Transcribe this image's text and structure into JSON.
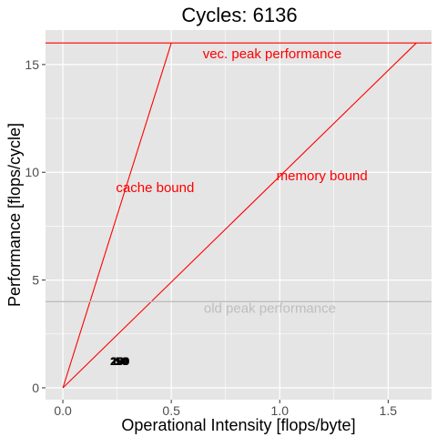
{
  "chart_data": {
    "type": "line",
    "title": "Cycles:  6136",
    "xlabel": "Operational Intensity [flops/byte]",
    "ylabel": "Performance [flops/cycle]",
    "xlim": [
      -0.08,
      1.7
    ],
    "ylim": [
      -0.55,
      16.6
    ],
    "grid": true,
    "x_ticks": [
      {
        "value": 0.0,
        "label": "0.0"
      },
      {
        "value": 0.5,
        "label": "0.5"
      },
      {
        "value": 1.0,
        "label": "1.0"
      },
      {
        "value": 1.5,
        "label": "1.5"
      }
    ],
    "y_ticks": [
      {
        "value": 0,
        "label": "0"
      },
      {
        "value": 5,
        "label": "5"
      },
      {
        "value": 10,
        "label": "10"
      },
      {
        "value": 15,
        "label": "15"
      }
    ],
    "x_minor": [
      0.25,
      0.75,
      1.25
    ],
    "y_minor": [
      2.5,
      7.5,
      12.5
    ],
    "colors": {
      "panel": "#e5e5e5",
      "grid": "#ffffff",
      "roof": "#ff0000",
      "old_peak": "#bebebe",
      "points": "#000000"
    },
    "series": [
      {
        "name": "vec. peak performance",
        "x": [
          -0.08,
          1.7
        ],
        "y": [
          16,
          16
        ],
        "color": "#ff0000"
      },
      {
        "name": "cache bound",
        "x": [
          0,
          0.5
        ],
        "y": [
          0,
          16
        ],
        "color": "#ff0000"
      },
      {
        "name": "memory bound",
        "x": [
          0,
          1.63
        ],
        "y": [
          0,
          16
        ],
        "color": "#ff0000"
      },
      {
        "name": "old peak performance",
        "x": [
          -0.08,
          1.7
        ],
        "y": [
          4,
          4
        ],
        "color": "#bebebe"
      }
    ],
    "annotations": [
      {
        "text": "vec. peak performance",
        "x": 0.645,
        "y": 15.5,
        "color": "#ff0000"
      },
      {
        "text": "cache bound",
        "x": 0.245,
        "y": 9.3,
        "color": "#ff0000"
      },
      {
        "text": "memory bound",
        "x": 0.985,
        "y": 9.85,
        "color": "#ff0000"
      },
      {
        "text": "old peak performance",
        "x": 0.65,
        "y": 3.7,
        "color": "#bebebe"
      }
    ],
    "points": [
      {
        "label": "250",
        "x": 0.26,
        "y": 1.25
      },
      {
        "label": "200",
        "x": 0.262,
        "y": 1.25
      },
      {
        "label": "150",
        "x": 0.264,
        "y": 1.25
      },
      {
        "label": "100",
        "x": 0.266,
        "y": 1.25
      },
      {
        "label": "50",
        "x": 0.27,
        "y": 1.25
      }
    ]
  }
}
